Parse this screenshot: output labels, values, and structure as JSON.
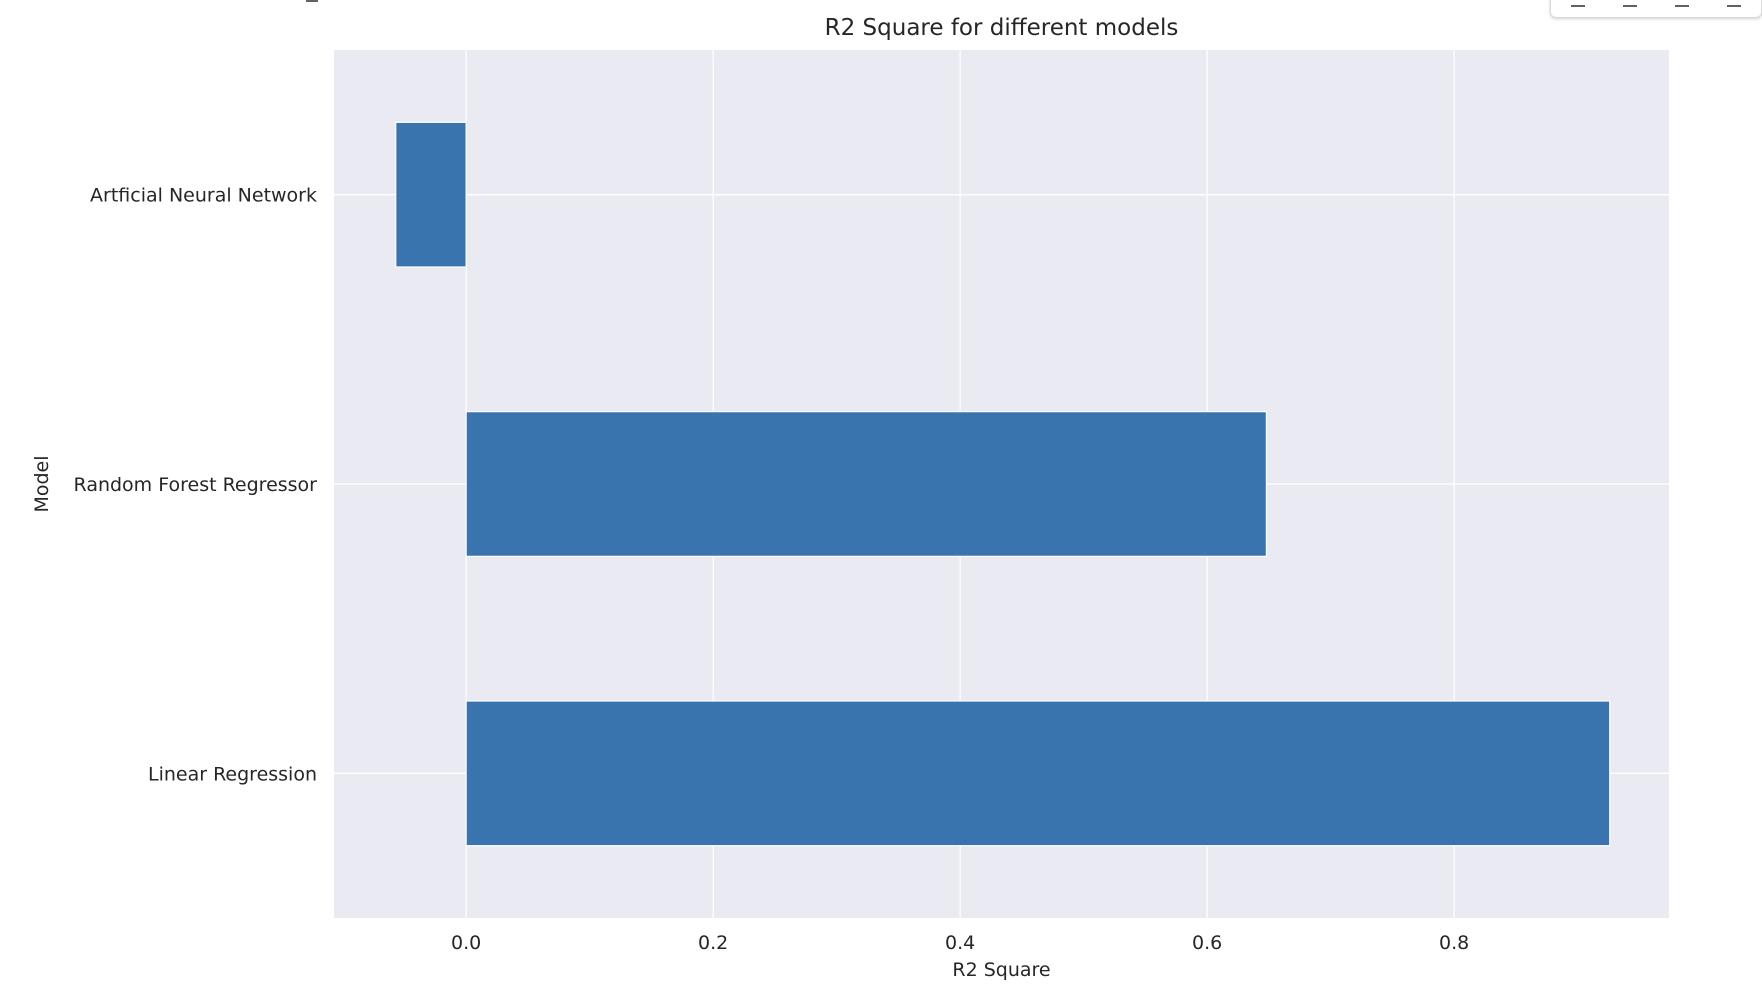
{
  "chart_data": {
    "type": "bar",
    "orientation": "horizontal",
    "title": "R2 Square for different models",
    "xlabel": "R2 Square",
    "ylabel": "Model",
    "categories": [
      "Linear Regression",
      "Random Forest Regressor",
      "Artficial Neural Network"
    ],
    "values": [
      0.926,
      0.648,
      -0.057
    ],
    "xlim": [
      -0.107,
      0.974
    ],
    "xticks": [
      0.0,
      0.2,
      0.4,
      0.6,
      0.8
    ],
    "xtick_labels": [
      "0.0",
      "0.2",
      "0.4",
      "0.6",
      "0.8"
    ],
    "grid": true,
    "legend": "none",
    "colors": {
      "bar": "#3a74ae",
      "plot_background": "#eaeaf2",
      "grid": "#ffffff",
      "text": "#262626"
    }
  },
  "toolbar": {
    "icons": [
      "up-arrow-icon",
      "diamond-icon",
      "link-icon",
      "comment-icon"
    ]
  }
}
